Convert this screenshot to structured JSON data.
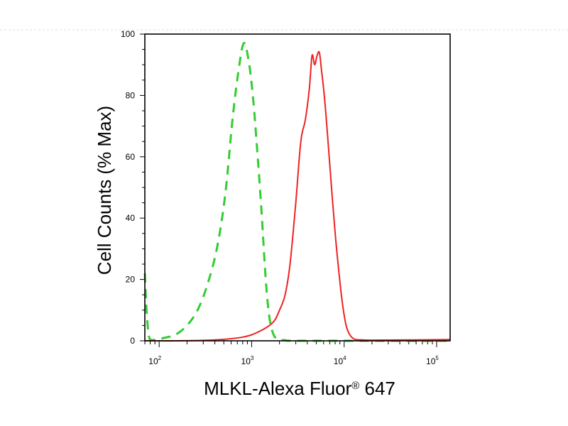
{
  "chart_data": {
    "type": "line",
    "xlabel": "MLKL-Alexa Fluor",
    "xlabel_mark": "®",
    "xlabel_suffix": " 647",
    "ylabel": "Cell Counts (% Max)",
    "xscale": "log",
    "xlim": [
      70,
      140000
    ],
    "ylim": [
      0,
      100
    ],
    "yticks": [
      0,
      20,
      40,
      60,
      80,
      100
    ],
    "yticks_text": [
      "0",
      "20",
      "40",
      "60",
      "80",
      "100"
    ],
    "xticks": [
      {
        "value": 100,
        "base": "10",
        "exp": "2"
      },
      {
        "value": 1000,
        "base": "10",
        "exp": "3"
      },
      {
        "value": 10000,
        "base": "10",
        "exp": "4"
      },
      {
        "value": 100000,
        "base": "10",
        "exp": "5"
      }
    ],
    "grid": false,
    "series": [
      {
        "color": "#33cc33",
        "style": "dashed",
        "points": [
          [
            70,
            22
          ],
          [
            73,
            10
          ],
          [
            77,
            2
          ],
          [
            82,
            0.3
          ],
          [
            95,
            0.5
          ],
          [
            115,
            1
          ],
          [
            150,
            2
          ],
          [
            200,
            5
          ],
          [
            260,
            10
          ],
          [
            330,
            18
          ],
          [
            420,
            30
          ],
          [
            520,
            48
          ],
          [
            620,
            72
          ],
          [
            720,
            88
          ],
          [
            820,
            97
          ],
          [
            920,
            92
          ],
          [
            1030,
            80
          ],
          [
            1150,
            62
          ],
          [
            1280,
            42
          ],
          [
            1420,
            20
          ],
          [
            1550,
            8
          ],
          [
            1700,
            2.5
          ],
          [
            1900,
            0.5
          ],
          [
            2300,
            0.2
          ],
          [
            3000,
            0
          ],
          [
            20000,
            0
          ],
          [
            140000,
            0
          ]
        ]
      },
      {
        "color": "#ee2222",
        "style": "solid",
        "points": [
          [
            70,
            0
          ],
          [
            150,
            0
          ],
          [
            400,
            0.3
          ],
          [
            800,
            1.2
          ],
          [
            1200,
            3
          ],
          [
            1700,
            6
          ],
          [
            2000,
            10
          ],
          [
            2300,
            15
          ],
          [
            2600,
            25
          ],
          [
            3000,
            45
          ],
          [
            3400,
            65
          ],
          [
            3800,
            72
          ],
          [
            4200,
            82
          ],
          [
            4500,
            93
          ],
          [
            4800,
            90
          ],
          [
            5100,
            93
          ],
          [
            5400,
            94
          ],
          [
            5700,
            88
          ],
          [
            6100,
            80
          ],
          [
            6700,
            65
          ],
          [
            7300,
            50
          ],
          [
            8000,
            35
          ],
          [
            8800,
            22
          ],
          [
            9600,
            12
          ],
          [
            10500,
            5
          ],
          [
            11500,
            2
          ],
          [
            13000,
            0.5
          ],
          [
            16000,
            0.3
          ],
          [
            20000,
            0.2
          ],
          [
            60000,
            0.3
          ],
          [
            140000,
            0.4
          ]
        ]
      }
    ]
  }
}
